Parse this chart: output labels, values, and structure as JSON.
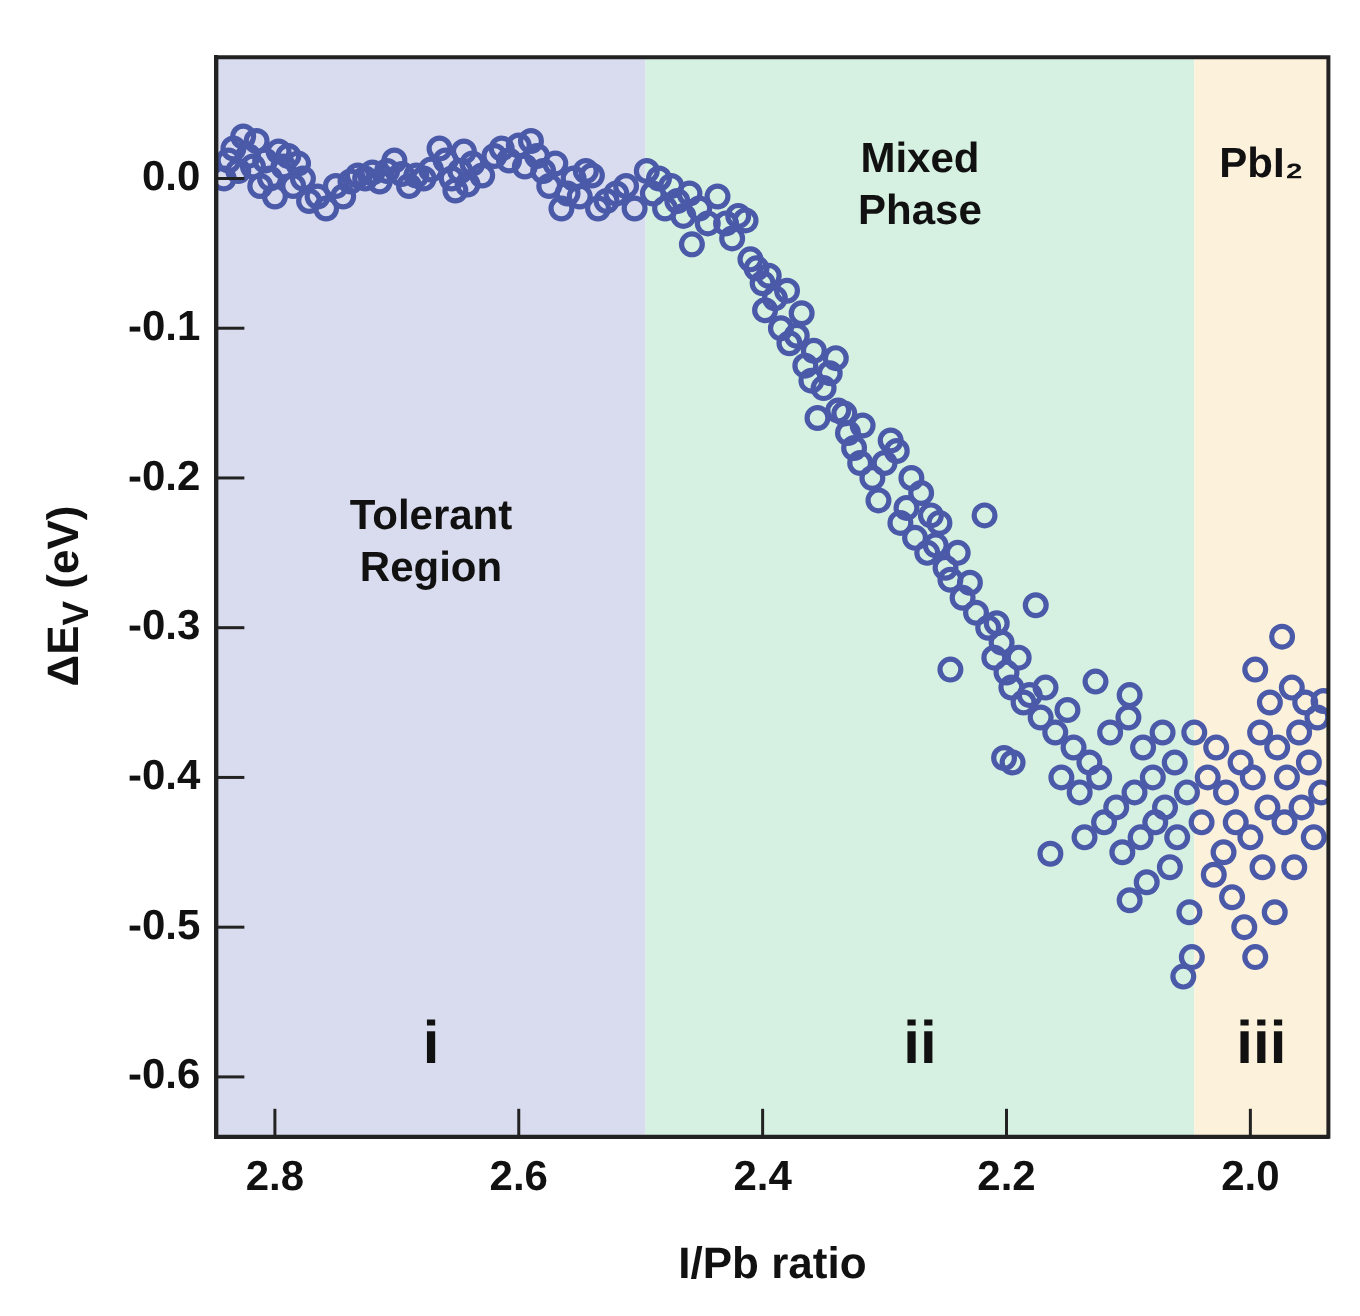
{
  "chart_data": {
    "type": "scatter",
    "xlabel": "I/Pb ratio",
    "ylabel": "ΔE$_{V}$ (eV)",
    "xlim": [
      2.848,
      1.936
    ],
    "xticks": [
      2.8,
      2.6,
      2.4,
      2.2,
      {
        "value": 2.0,
        "label": "2.0"
      }
    ],
    "ylim": [
      -0.64,
      0.081
    ],
    "yticks": [
      {
        "value": 0,
        "label": "0.0"
      },
      -0.1,
      -0.2,
      -0.3,
      -0.4,
      -0.5,
      -0.6
    ],
    "grid": false,
    "legend": false,
    "marker": "circle",
    "bands": [
      {
        "axis": "x",
        "from": 2.848,
        "to": 2.496,
        "label": "i",
        "color": "#d9dcee"
      },
      {
        "axis": "x",
        "from": 2.496,
        "to": 2.046,
        "label": "ii",
        "color": "#d6f0e2"
      },
      {
        "axis": "x",
        "from": 2.046,
        "to": 1.936,
        "label": "iii",
        "color": "#fcf1db"
      }
    ],
    "annotations": [
      "Tolerant Region",
      "Mixed Phase",
      "PbI₂"
    ],
    "series": [
      {
        "color": "#4a5aa8",
        "x": [
          2.842,
          2.838,
          2.834,
          2.83,
          2.826,
          2.822,
          2.818,
          2.815,
          2.812,
          2.808,
          2.804,
          2.8,
          2.797,
          2.793,
          2.789,
          2.785,
          2.781,
          2.777,
          2.772,
          2.765,
          2.758,
          2.75,
          2.744,
          2.738,
          2.732,
          2.726,
          2.72,
          2.714,
          2.708,
          2.702,
          2.696,
          2.69,
          2.684,
          2.678,
          2.672,
          2.665,
          2.66,
          2.655,
          2.652,
          2.648,
          2.645,
          2.642,
          2.638,
          2.63,
          2.62,
          2.614,
          2.608,
          2.6,
          2.595,
          2.59,
          2.585,
          2.58,
          2.575,
          2.57,
          2.565,
          2.56,
          2.555,
          2.55,
          2.545,
          2.54,
          2.535,
          2.528,
          2.52,
          2.512,
          2.505,
          2.495,
          2.49,
          2.485,
          2.48,
          2.475,
          2.47,
          2.465,
          2.46,
          2.458,
          2.452,
          2.445,
          2.437,
          2.43,
          2.425,
          2.42,
          2.414,
          2.41,
          2.405,
          2.4,
          2.398,
          2.395,
          2.39,
          2.385,
          2.38,
          2.378,
          2.372,
          2.368,
          2.365,
          2.36,
          2.358,
          2.355,
          2.35,
          2.345,
          2.34,
          2.338,
          2.333,
          2.33,
          2.325,
          2.32,
          2.318,
          2.31,
          2.305,
          2.3,
          2.295,
          2.29,
          2.287,
          2.282,
          2.278,
          2.275,
          2.27,
          2.265,
          2.262,
          2.258,
          2.255,
          2.25,
          2.246,
          2.246,
          2.24,
          2.236,
          2.23,
          2.225,
          2.218,
          2.215,
          2.21,
          2.208,
          2.204,
          2.202,
          2.2,
          2.196,
          2.195,
          2.19,
          2.186,
          2.181,
          2.176,
          2.172,
          2.168,
          2.164,
          2.16,
          2.155,
          2.15,
          2.145,
          2.14,
          2.136,
          2.132,
          2.127,
          2.124,
          2.12,
          2.115,
          2.11,
          2.105,
          2.1,
          2.099,
          2.099,
          2.095,
          2.09,
          2.088,
          2.085,
          2.08,
          2.078,
          2.072,
          2.07,
          2.066,
          2.062,
          2.06,
          2.055,
          2.052,
          2.05,
          2.048,
          2.046,
          2.04,
          2.035,
          2.03,
          2.028,
          2.022,
          2.02,
          2.015,
          2.012,
          2.008,
          2.005,
          2.0,
          1.998,
          1.996,
          1.996,
          1.992,
          1.99,
          1.986,
          1.984,
          1.98,
          1.978,
          1.974,
          1.972,
          1.97,
          1.966,
          1.964,
          1.96,
          1.958,
          1.955,
          1.952,
          1.948,
          1.945,
          1.942,
          1.94
        ],
        "values": [
          0.0,
          0.012,
          0.02,
          0.005,
          0.028,
          0.015,
          0.008,
          0.025,
          -0.005,
          0.012,
          0.0,
          -0.012,
          0.018,
          0.008,
          0.015,
          -0.005,
          0.01,
          0.0,
          -0.015,
          -0.012,
          -0.02,
          -0.005,
          -0.012,
          -0.002,
          0.002,
          0.0,
          0.004,
          -0.002,
          0.005,
          0.012,
          0.003,
          -0.005,
          0.002,
          0.0,
          0.006,
          0.02,
          0.012,
          0.0,
          -0.008,
          0.005,
          0.018,
          -0.004,
          0.01,
          0.002,
          0.015,
          0.02,
          0.012,
          0.022,
          0.008,
          0.025,
          0.015,
          0.005,
          -0.005,
          0.01,
          -0.02,
          -0.01,
          0.0,
          -0.012,
          0.005,
          0.002,
          -0.02,
          -0.015,
          -0.01,
          -0.005,
          -0.02,
          0.005,
          -0.01,
          0.0,
          -0.02,
          -0.005,
          -0.015,
          -0.025,
          -0.01,
          -0.044,
          -0.02,
          -0.03,
          -0.012,
          -0.03,
          -0.04,
          -0.025,
          -0.028,
          -0.054,
          -0.06,
          -0.07,
          -0.088,
          -0.065,
          -0.08,
          -0.1,
          -0.075,
          -0.11,
          -0.105,
          -0.09,
          -0.125,
          -0.135,
          -0.115,
          -0.16,
          -0.14,
          -0.13,
          -0.12,
          -0.155,
          -0.157,
          -0.17,
          -0.18,
          -0.19,
          -0.165,
          -0.2,
          -0.215,
          -0.19,
          -0.175,
          -0.182,
          -0.23,
          -0.22,
          -0.2,
          -0.24,
          -0.21,
          -0.25,
          -0.225,
          -0.245,
          -0.23,
          -0.26,
          -0.268,
          -0.328,
          -0.25,
          -0.28,
          -0.27,
          -0.29,
          -0.225,
          -0.3,
          -0.32,
          -0.297,
          -0.31,
          -0.387,
          -0.33,
          -0.34,
          -0.39,
          -0.32,
          -0.35,
          -0.345,
          -0.285,
          -0.36,
          -0.34,
          -0.451,
          -0.37,
          -0.4,
          -0.355,
          -0.38,
          -0.41,
          -0.44,
          -0.39,
          -0.336,
          -0.4,
          -0.43,
          -0.37,
          -0.42,
          -0.45,
          -0.36,
          -0.345,
          -0.482,
          -0.41,
          -0.44,
          -0.38,
          -0.47,
          -0.4,
          -0.43,
          -0.37,
          -0.42,
          -0.46,
          -0.39,
          -0.44,
          -0.533,
          -0.41,
          -0.49,
          -0.52,
          -0.37,
          -0.43,
          -0.4,
          -0.465,
          -0.38,
          -0.45,
          -0.41,
          -0.48,
          -0.43,
          -0.39,
          -0.5,
          -0.44,
          -0.4,
          -0.328,
          -0.52,
          -0.37,
          -0.46,
          -0.42,
          -0.35,
          -0.49,
          -0.38,
          -0.306,
          -0.43,
          -0.4,
          -0.34,
          -0.46,
          -0.37,
          -0.42,
          -0.35,
          -0.39,
          -0.44,
          -0.36,
          -0.41,
          -0.349
        ]
      }
    ]
  }
}
